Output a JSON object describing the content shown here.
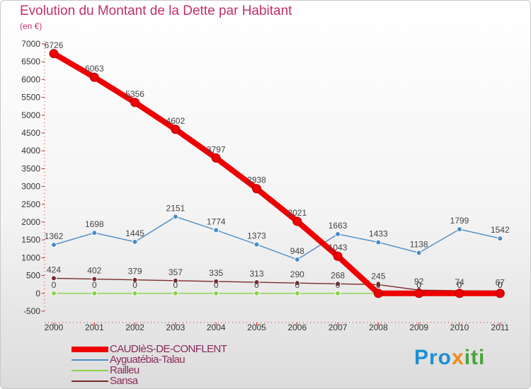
{
  "chart_data": {
    "type": "line",
    "title": "Evolution du Montant de la Dette par Habitant",
    "subtitle": "(en €)",
    "x": [
      "2000",
      "2001",
      "2002",
      "2003",
      "2004",
      "2005",
      "2006",
      "2007",
      "2008",
      "2009",
      "2010",
      "2011"
    ],
    "ylim": [
      -500,
      7000
    ],
    "yticks": [
      -500,
      0,
      500,
      1000,
      1500,
      2000,
      2500,
      3000,
      3500,
      4000,
      4500,
      5000,
      5500,
      6000,
      6500,
      7000
    ],
    "grid": false,
    "legend_position": "bottom-left",
    "series": [
      {
        "name": "CAUDIèS-DE-CONFLENT",
        "color": "#ee0000",
        "values": [
          6726,
          6063,
          5356,
          4602,
          3797,
          2938,
          2021,
          1043,
          0,
          0,
          0,
          0
        ],
        "labels": [
          "6726",
          "6063",
          "5356",
          "4602",
          "3797",
          "2938",
          "2021",
          "1043",
          "0",
          "0",
          "0",
          "0"
        ]
      },
      {
        "name": "Ayguatébia-Talau",
        "color": "#4a8cc8",
        "values": [
          1362,
          1698,
          1445,
          2151,
          1774,
          1373,
          948,
          1663,
          1433,
          1138,
          1799,
          1542
        ],
        "labels": [
          "1362",
          "1698",
          "1445",
          "2151",
          "1774",
          "1373",
          "948",
          "1663",
          "1433",
          "1138",
          "1799",
          "1542"
        ]
      },
      {
        "name": "Railleu",
        "color": "#8bd14a",
        "values": [
          0,
          0,
          0,
          0,
          0,
          0,
          0,
          0,
          0,
          0,
          0,
          0
        ],
        "labels": [
          "0",
          "0",
          "0",
          "0",
          "0",
          "0",
          "0",
          "0",
          "0",
          "0",
          "0",
          "0"
        ]
      },
      {
        "name": "Sansa",
        "color": "#7a2a2a",
        "values": [
          424,
          402,
          379,
          357,
          335,
          313,
          290,
          268,
          245,
          92,
          74,
          67
        ],
        "labels": [
          "424",
          "402",
          "379",
          "357",
          "335",
          "313",
          "290",
          "268",
          "245",
          "92",
          "74",
          "67"
        ]
      }
    ]
  },
  "logo": {
    "p1": "Pro",
    "p2": "x",
    "p3": "iti"
  }
}
